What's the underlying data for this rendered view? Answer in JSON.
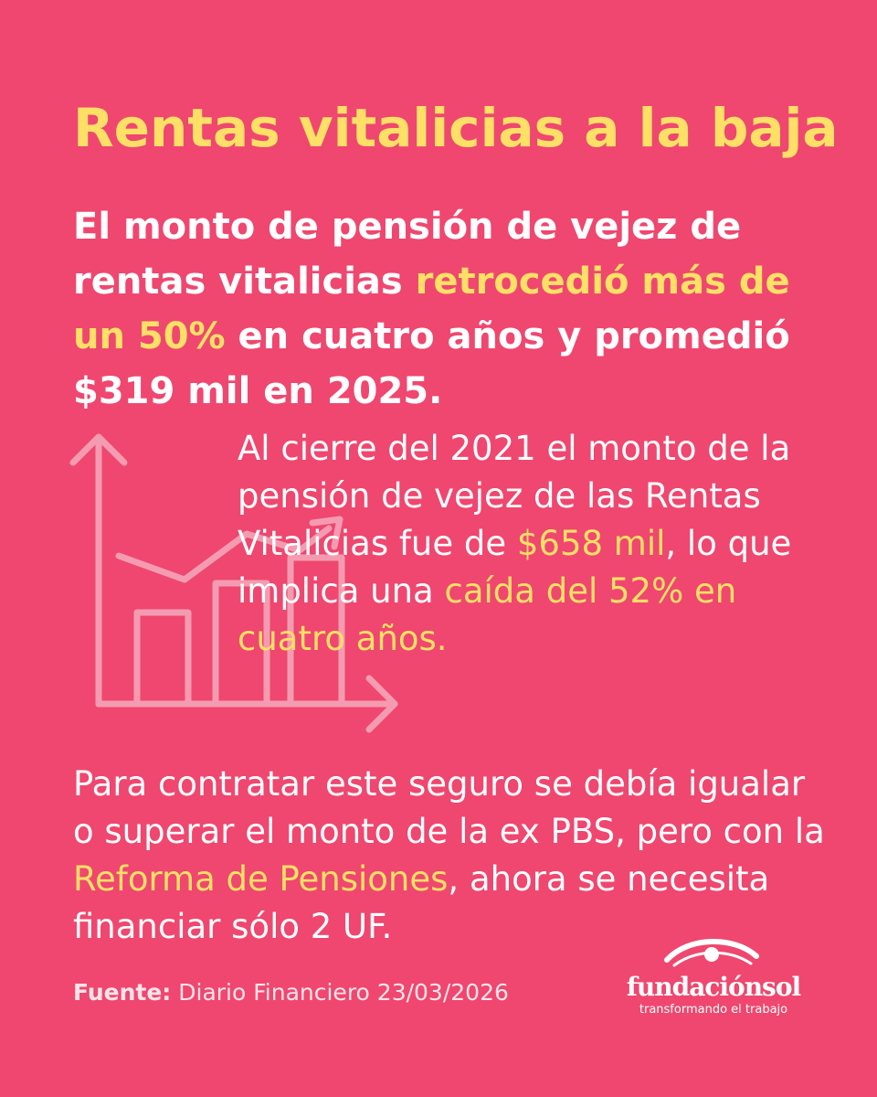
{
  "title": "Rentas vitalicias a la baja",
  "headline": {
    "part1": "El monto de pensión de vejez de rentas vitalicias ",
    "highlight1": "retrocedió más de un 50%",
    "part2": " en cuatro años y promedió $319 mil en 2025."
  },
  "detail": {
    "part1": "Al cierre del 2021 el monto de la pensión de vejez de las Rentas Vitalicias fue de ",
    "highlight1": "$658 mil",
    "part2": ", lo que implica una ",
    "highlight2": "caída del 52% en cuatro años."
  },
  "requirement": {
    "part1": "Para contratar este seguro se debía igualar o superar el monto de la ex PBS, pero con la ",
    "highlight1": "Reforma de Pensiones",
    "part2": ", ahora se necesita financiar sólo 2 UF."
  },
  "source": {
    "label": "Fuente:",
    "text": " Diario Financiero 23/03/2026"
  },
  "logo": {
    "name": "fundaciónsol",
    "tagline": "transformando el trabajo"
  },
  "icons": {
    "chart": "declining-bar-chart-icon",
    "logo_mark": "eye-icon"
  },
  "colors": {
    "background": "#ef476f",
    "highlight": "#ffe066",
    "text": "#ffffff"
  }
}
